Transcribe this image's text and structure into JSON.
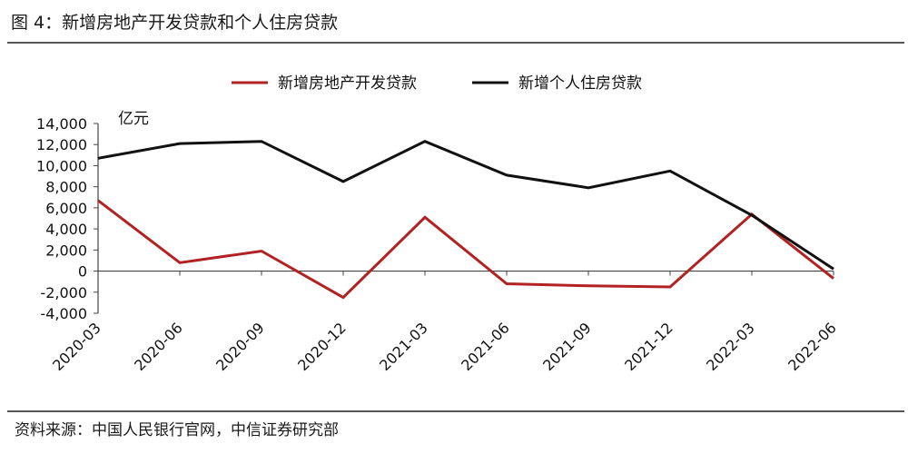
{
  "figure": {
    "title": "图 4：新增房地产开发贷款和个人住房贷款",
    "source": "资料来源：中国人民银行官网，中信证券研究部"
  },
  "chart_data": {
    "type": "line",
    "x": [
      "2020-03",
      "2020-06",
      "2020-09",
      "2020-12",
      "2021-03",
      "2021-06",
      "2021-09",
      "2021-12",
      "2022-03",
      "2022-06"
    ],
    "series": [
      {
        "name": "新增房地产开发贷款",
        "color": "#b22222",
        "values": [
          6700,
          800,
          1900,
          -2500,
          5100,
          -1200,
          -1400,
          -1500,
          5400,
          -700
        ]
      },
      {
        "name": "新增个人住房贷款",
        "color": "#111111",
        "values": [
          10700,
          12100,
          12300,
          8500,
          12300,
          9100,
          7900,
          9500,
          5300,
          200
        ]
      }
    ],
    "unit_label": "亿元",
    "ylim": [
      -4000,
      14000
    ],
    "yticks": [
      "14,000",
      "12,000",
      "10,000",
      "8,000",
      "6,000",
      "4,000",
      "2,000",
      "0",
      "-2,000",
      "-4,000"
    ],
    "ytick_values": [
      14000,
      12000,
      10000,
      8000,
      6000,
      4000,
      2000,
      0,
      -2000,
      -4000
    ],
    "legend_position": "top",
    "grid": false
  }
}
